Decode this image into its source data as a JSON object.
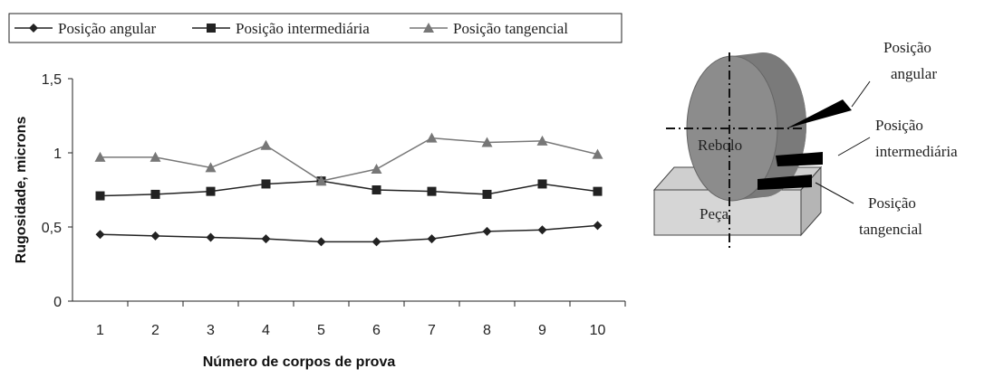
{
  "chart_data": {
    "type": "line",
    "xlabel": "Número de corpos de prova",
    "ylabel": "Rugosidade, microns",
    "categories": [
      "1",
      "2",
      "3",
      "4",
      "5",
      "6",
      "7",
      "8",
      "9",
      "10"
    ],
    "ylim": [
      0,
      1.5
    ],
    "yticks": [
      0,
      {
        "value": 0.5,
        "label": "0,5"
      },
      1,
      {
        "value": 1.5,
        "label": "1,5"
      }
    ],
    "grid": false,
    "legend": "top",
    "series": [
      {
        "name": "Posição angular",
        "color": "#222222",
        "marker": "diamond",
        "values": [
          0.45,
          0.44,
          0.43,
          0.42,
          0.4,
          0.4,
          0.42,
          0.47,
          0.48,
          0.51
        ]
      },
      {
        "name": "Posição intermediária",
        "color": "#222222",
        "marker": "square",
        "values": [
          0.71,
          0.72,
          0.74,
          0.79,
          0.81,
          0.75,
          0.74,
          0.72,
          0.79,
          0.74
        ]
      },
      {
        "name": "Posição tangencial",
        "color": "#777777",
        "marker": "triangle",
        "values": [
          0.97,
          0.97,
          0.9,
          1.05,
          0.81,
          0.89,
          1.1,
          1.07,
          1.08,
          0.99
        ]
      }
    ]
  },
  "diagram": {
    "wheel": "Rebolo",
    "piece": "Peça",
    "labels": [
      [
        "Posição",
        "angular"
      ],
      [
        "Posição",
        "intermediária"
      ],
      [
        "Posição",
        "tangencial"
      ]
    ]
  }
}
